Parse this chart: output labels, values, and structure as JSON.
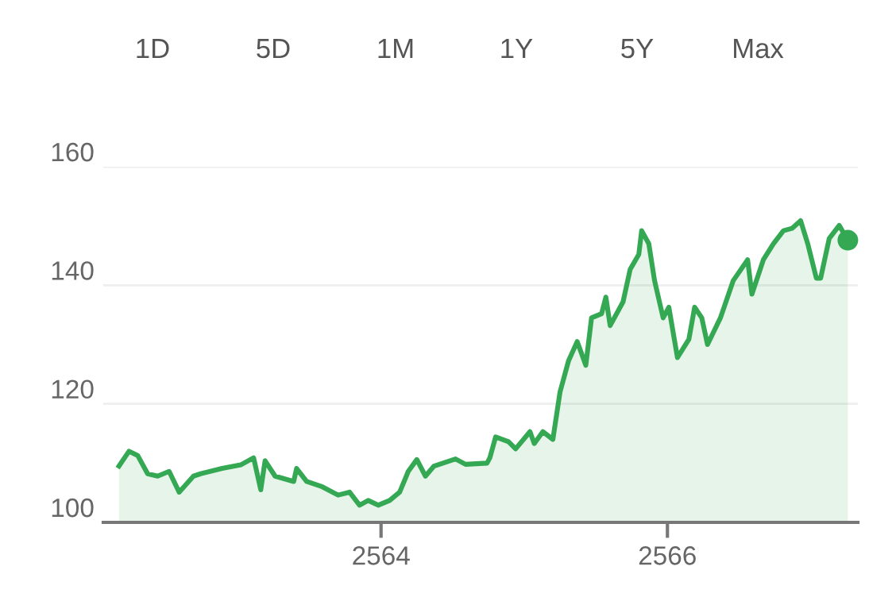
{
  "chart_data": {
    "type": "area",
    "annotations": [
      "1D",
      "5D",
      "1M",
      "1Y",
      "5Y",
      "Max"
    ],
    "x": [
      2562.17,
      2562.24,
      2562.3,
      2562.37,
      2562.44,
      2562.52,
      2562.59,
      2562.69,
      2562.74,
      2562.89,
      2563.02,
      2563.11,
      2563.16,
      2563.19,
      2563.26,
      2563.39,
      2563.41,
      2563.48,
      2563.59,
      2563.7,
      2563.78,
      2563.85,
      2563.91,
      2563.98,
      2564.06,
      2564.13,
      2564.19,
      2564.25,
      2564.31,
      2564.37,
      2564.52,
      2564.59,
      2564.74,
      2564.76,
      2564.8,
      2564.89,
      2564.94,
      2565.04,
      2565.07,
      2565.13,
      2565.2,
      2565.25,
      2565.31,
      2565.37,
      2565.43,
      2565.47,
      2565.54,
      2565.57,
      2565.6,
      2565.69,
      2565.74,
      2565.8,
      2565.82,
      2565.87,
      2565.91,
      2565.97,
      2566.01,
      2566.07,
      2566.15,
      2566.19,
      2566.24,
      2566.28,
      2566.37,
      2566.46,
      2566.56,
      2566.59,
      2566.67,
      2566.74,
      2566.81,
      2566.87,
      2566.93,
      2566.98,
      2567.04,
      2567.07,
      2567.13,
      2567.2,
      2567.26
    ],
    "series": [
      {
        "color": "#34a853",
        "values": [
          109.5,
          112.0,
          111.3,
          108.2,
          107.8,
          108.6,
          105.1,
          107.8,
          108.2,
          109.1,
          109.7,
          110.9,
          105.5,
          110.4,
          107.8,
          106.9,
          109.1,
          106.9,
          106.0,
          104.6,
          105.1,
          102.9,
          103.7,
          102.9,
          103.7,
          105.1,
          108.6,
          110.6,
          107.8,
          109.5,
          110.7,
          109.8,
          110.0,
          110.9,
          114.4,
          113.6,
          112.4,
          115.3,
          113.3,
          115.3,
          114.0,
          122.0,
          127.3,
          130.5,
          126.5,
          134.5,
          135.2,
          138.0,
          133.2,
          137.2,
          142.7,
          145.2,
          149.2,
          147.0,
          140.8,
          134.5,
          136.3,
          127.8,
          130.9,
          136.3,
          134.5,
          130.0,
          134.5,
          140.8,
          144.3,
          138.5,
          144.3,
          147.0,
          149.2,
          149.6,
          150.9,
          147.0,
          141.2,
          141.2,
          147.9,
          150.1,
          147.6
        ]
      },
      {
        "type": "scatter",
        "color": "#34a853",
        "x": [
          2567.26
        ],
        "values": [
          147.6
        ]
      }
    ],
    "xlim": [
      2562.06,
      2567.33
    ],
    "ylim": [
      100,
      160
    ],
    "xticks": [
      2564,
      2566
    ],
    "yticks": [
      100,
      120,
      140,
      160
    ],
    "grid": "y"
  }
}
